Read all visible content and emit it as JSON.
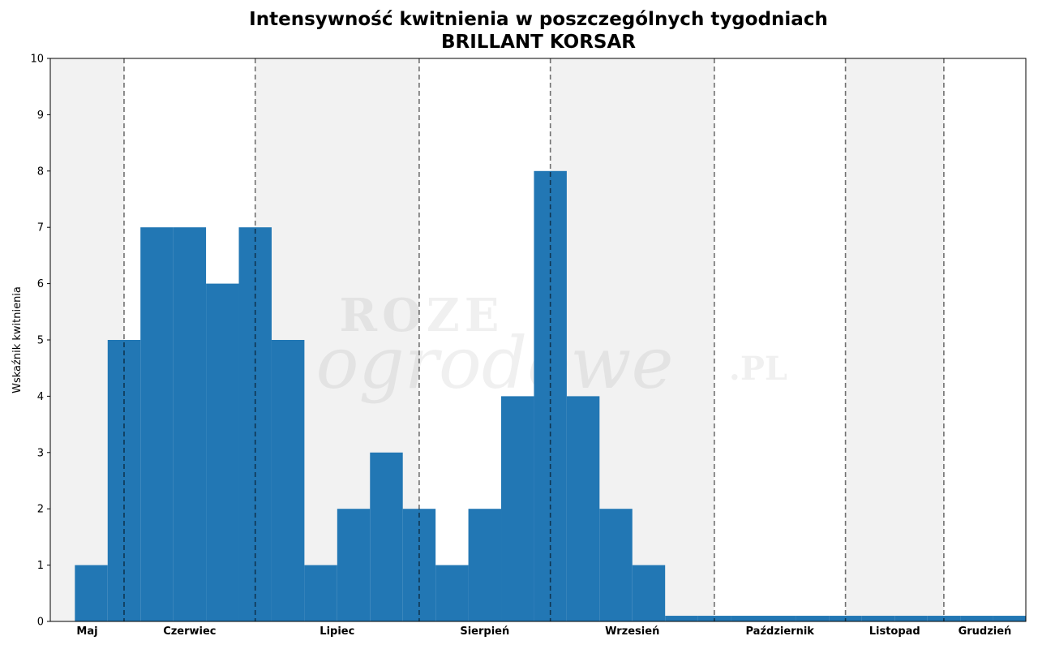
{
  "chart_data": {
    "type": "bar",
    "title_lines": [
      "Intensywność kwitnienia w poszczególnych tygodniach",
      "BRILLANT KORSAR"
    ],
    "xlabel": "",
    "ylabel": "Wskaźnik kwitnienia",
    "ylim": [
      0,
      10
    ],
    "yticks": [
      0,
      1,
      2,
      3,
      4,
      5,
      6,
      7,
      8,
      9,
      10
    ],
    "grid": false,
    "weeks": [
      1,
      2,
      3,
      4,
      5,
      6,
      7,
      8,
      9,
      10,
      11,
      12,
      13,
      14,
      15,
      16,
      17,
      18,
      19,
      20,
      21,
      22,
      23,
      24,
      25,
      26,
      27,
      28,
      29
    ],
    "values": [
      1,
      5,
      7,
      7,
      6,
      7,
      5,
      1,
      2,
      3,
      2,
      1,
      2,
      4,
      8,
      4,
      2,
      1,
      0.1,
      0.1,
      0.1,
      0.1,
      0.1,
      0.1,
      0.1,
      0.1,
      0.1,
      0.1,
      0.1
    ],
    "bar_color": "#2277b4",
    "months": [
      {
        "name": "Maj",
        "start": -0.25,
        "end": 2,
        "shaded": true
      },
      {
        "name": "Czerwiec",
        "start": 2,
        "end": 6,
        "shaded": false
      },
      {
        "name": "Lipiec",
        "start": 6,
        "end": 11,
        "shaded": true
      },
      {
        "name": "Sierpień",
        "start": 11,
        "end": 15,
        "shaded": false
      },
      {
        "name": "Wrzesień",
        "start": 15,
        "end": 20,
        "shaded": true
      },
      {
        "name": "Październik",
        "start": 20,
        "end": 24,
        "shaded": false
      },
      {
        "name": "Listopad",
        "start": 24,
        "end": 27,
        "shaded": true
      },
      {
        "name": "Grudzień",
        "start": 27,
        "end": 29.5,
        "shaded": false
      }
    ],
    "shade_color": "#f2f2f2",
    "watermark": {
      "line1": "ROZE",
      "line2": "ogrodowe",
      "suffix": ".PL"
    }
  }
}
